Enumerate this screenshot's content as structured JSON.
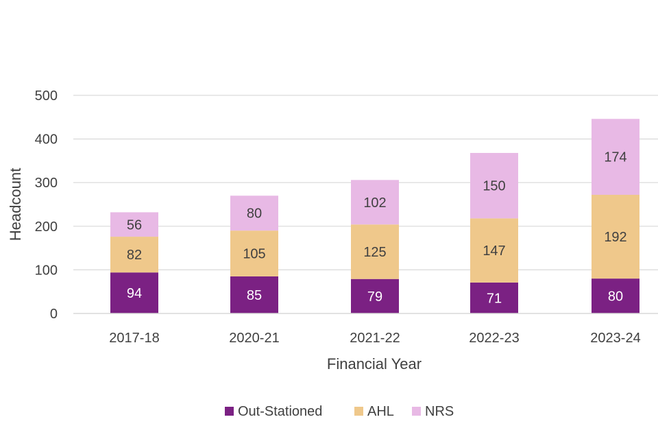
{
  "chart_data": {
    "type": "bar",
    "stacked": true,
    "categories": [
      "2017-18",
      "2020-21",
      "2021-22",
      "2022-23",
      "2023-24"
    ],
    "series": [
      {
        "name": "Out-Stationed",
        "values": [
          94,
          85,
          79,
          71,
          80
        ],
        "color": "#7b2183",
        "label_color": "#ffffff"
      },
      {
        "name": "AHL",
        "values": [
          82,
          105,
          125,
          147,
          192
        ],
        "color": "#efc88b",
        "label_color": "#404040"
      },
      {
        "name": "NRS",
        "values": [
          56,
          80,
          102,
          150,
          174
        ],
        "color": "#e8b9e5",
        "label_color": "#404040"
      }
    ],
    "title": "",
    "xlabel": "Financial Year",
    "ylabel": "Headcount",
    "ylim": [
      0,
      500
    ],
    "yticks": [
      0,
      100,
      200,
      300,
      400,
      500
    ],
    "grid": true,
    "legend_position": "bottom"
  }
}
